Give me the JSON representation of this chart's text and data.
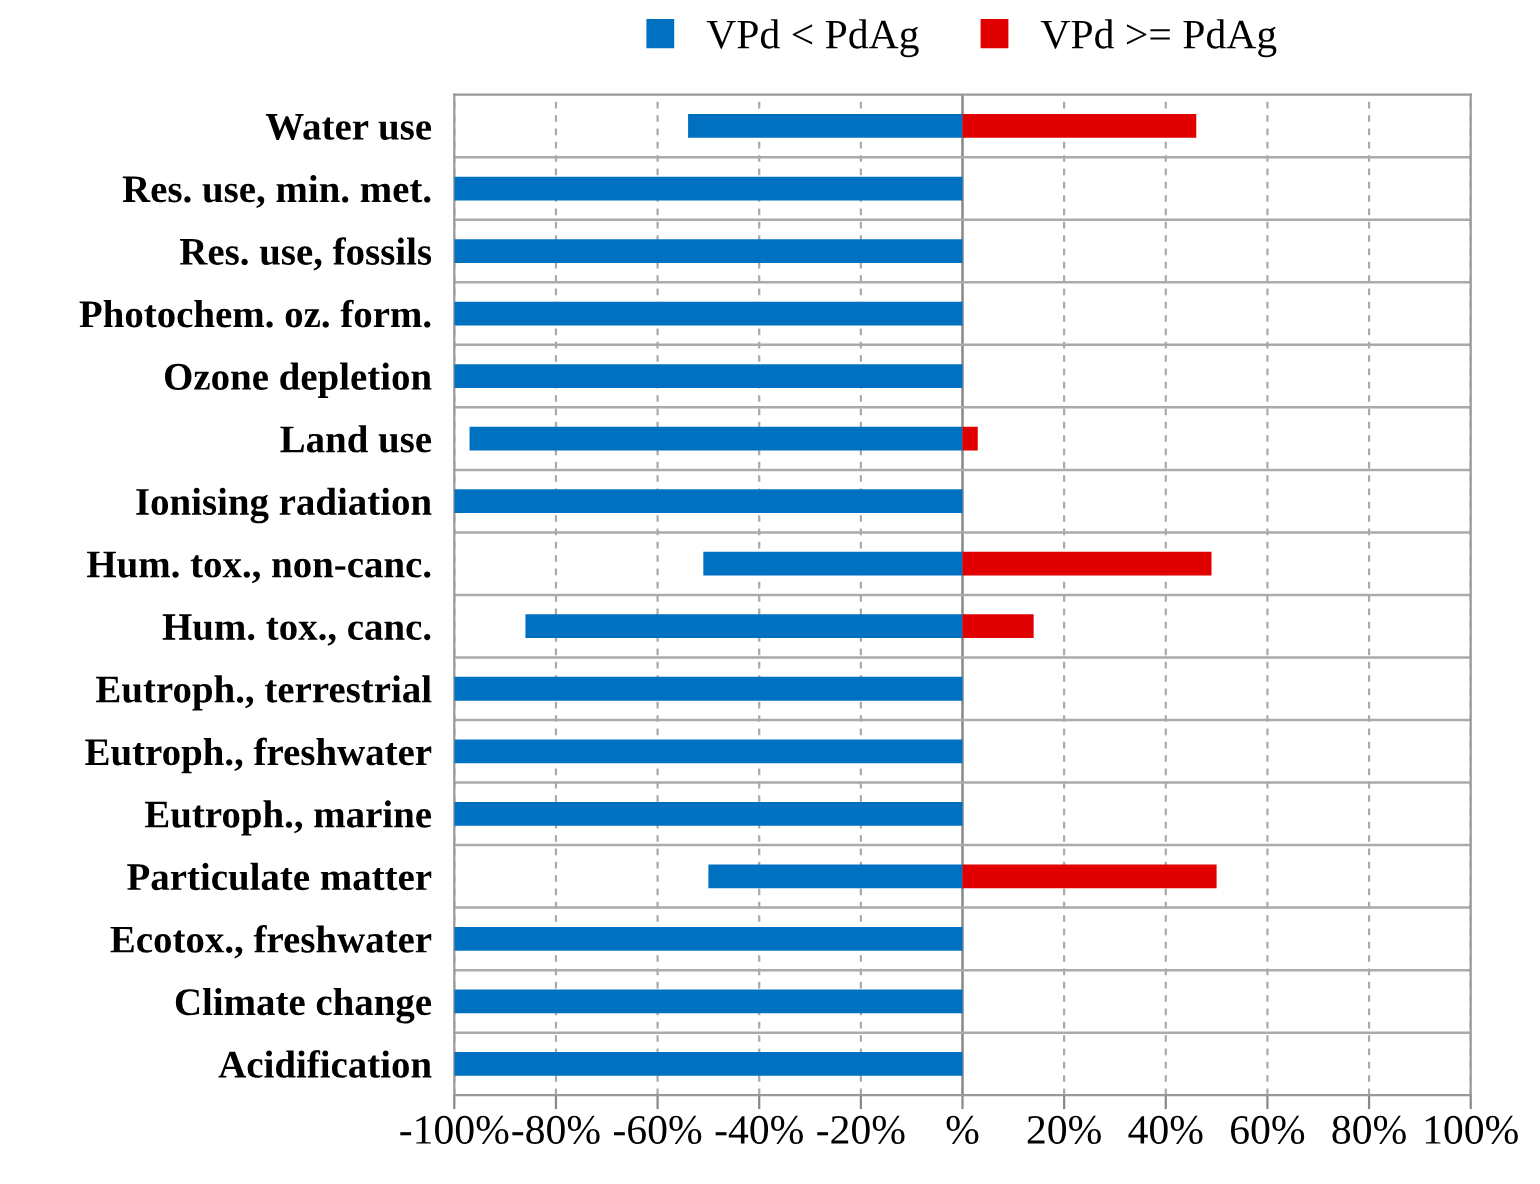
{
  "chart_data": {
    "type": "bar",
    "orientation": "horizontal",
    "stacked": true,
    "categories": [
      "Water use",
      "Res. use, min. met.",
      "Res. use, fossils",
      "Photochem. oz. form.",
      "Ozone depletion",
      "Land use",
      "Ionising radiation",
      "Hum. tox., non-canc.",
      "Hum. tox., canc.",
      "Eutroph., terrestrial",
      "Eutroph., freshwater",
      "Eutroph., marine",
      "Particulate matter",
      "Ecotox., freshwater",
      "Climate change",
      "Acidification"
    ],
    "series": [
      {
        "name": "VPd < PdAg",
        "color": "#0070c0",
        "values": [
          -54,
          -100,
          -100,
          -100,
          -100,
          -97,
          -100,
          -51,
          -86,
          -100,
          -100,
          -100,
          -50,
          -100,
          -100,
          -100
        ]
      },
      {
        "name": "VPd >= PdAg",
        "color": "#e00000",
        "values": [
          46,
          0,
          0,
          0,
          0,
          3,
          0,
          49,
          14,
          0,
          0,
          0,
          50,
          0,
          0,
          0
        ]
      }
    ],
    "xlim": [
      -100,
      100
    ],
    "xticks": [
      {
        "value": -100,
        "label": "-100%"
      },
      {
        "value": -80,
        "label": "-80%"
      },
      {
        "value": -60,
        "label": "-60%"
      },
      {
        "value": -40,
        "label": "-40%"
      },
      {
        "value": -20,
        "label": "-20%"
      },
      {
        "value": 0,
        "label": "%"
      },
      {
        "value": 20,
        "label": "20%"
      },
      {
        "value": 40,
        "label": "40%"
      },
      {
        "value": 60,
        "label": "60%"
      },
      {
        "value": 80,
        "label": "80%"
      },
      {
        "value": 100,
        "label": "100%"
      }
    ],
    "grid": true,
    "legend": "top"
  }
}
